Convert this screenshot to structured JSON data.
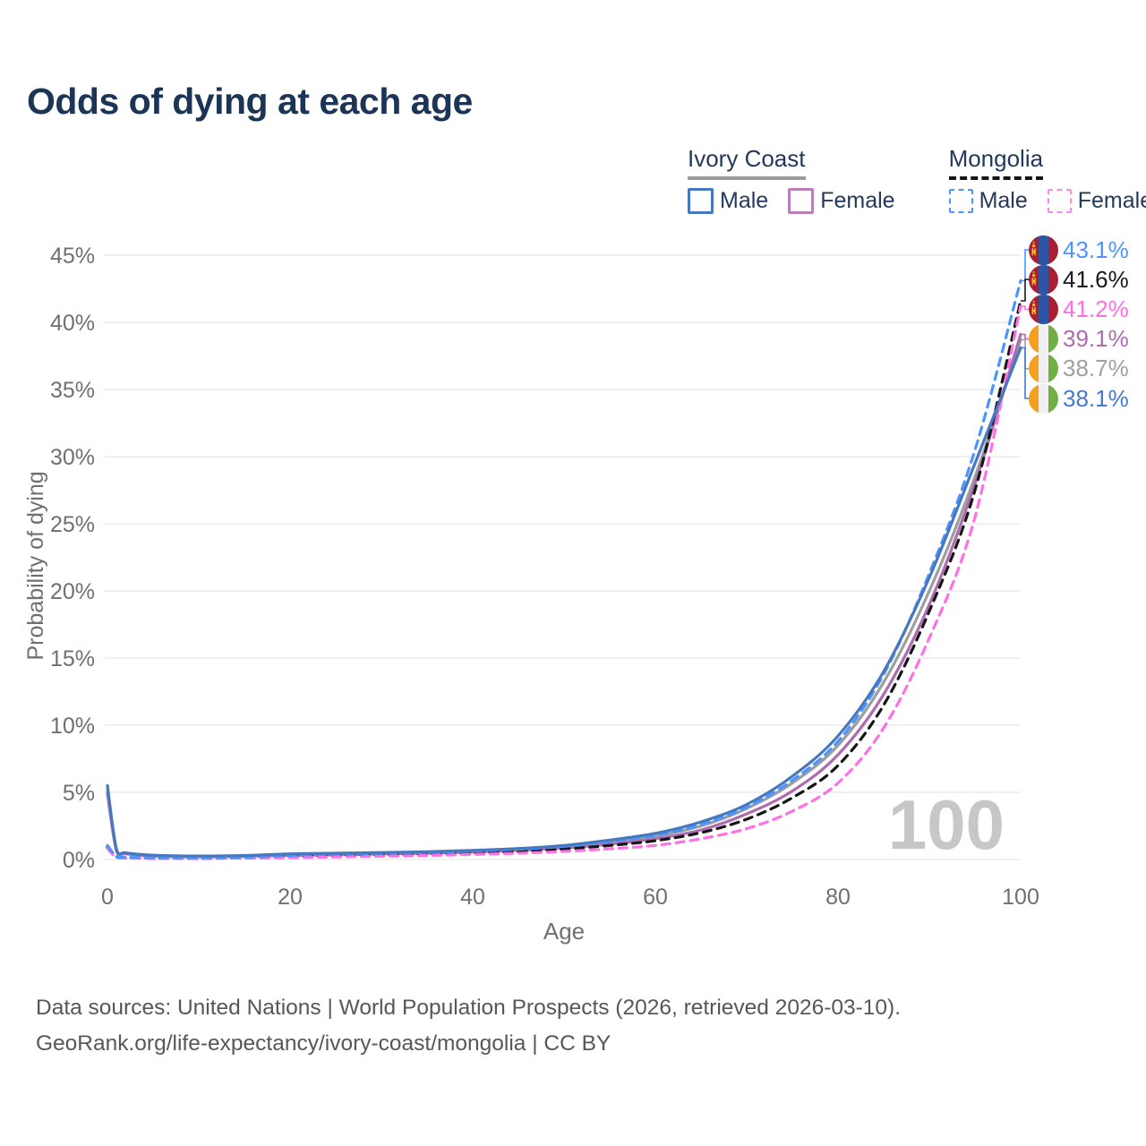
{
  "title": "Odds of dying at each age",
  "legend": {
    "groups": [
      {
        "title": "Ivory Coast",
        "line_style": "solid",
        "underline_color": "#9a9a9a",
        "items": [
          {
            "label": "Male",
            "color": "#4678c0"
          },
          {
            "label": "Female",
            "color": "#b87fb8"
          }
        ]
      },
      {
        "title": "Mongolia",
        "line_style": "dashed",
        "underline_color": "#141414",
        "items": [
          {
            "label": "Male",
            "color": "#4d94ff"
          },
          {
            "label": "Female",
            "color": "#ff85ea"
          }
        ]
      }
    ]
  },
  "watermark": "100",
  "footer": {
    "line1": "Data sources: United Nations | World Population Prospects (2026, retrieved 2026-03-10).",
    "line2": "GeoRank.org/life-expectancy/ivory-coast/mongolia | CC BY"
  },
  "chart_data": {
    "type": "line",
    "title": "Odds of dying at each age",
    "xlabel": "Age",
    "ylabel": "Probability of dying",
    "xlim": [
      0,
      100
    ],
    "ylim": [
      0,
      45
    ],
    "x_ticks": [
      0,
      20,
      40,
      60,
      80,
      100
    ],
    "y_ticks": [
      0,
      5,
      10,
      15,
      20,
      25,
      30,
      35,
      40,
      45
    ],
    "y_tick_suffix": "%",
    "grid": "horizontal",
    "legend_position": "top-right",
    "x": [
      0,
      1,
      2,
      5,
      10,
      15,
      20,
      25,
      30,
      35,
      40,
      45,
      50,
      55,
      60,
      65,
      70,
      75,
      80,
      85,
      90,
      95,
      100
    ],
    "series": [
      {
        "name": "Ivory Coast Male",
        "country": "Ivory Coast",
        "sex": "Male",
        "color": "#4678c0",
        "dash": false,
        "values": [
          5.5,
          0.75,
          0.5,
          0.32,
          0.26,
          0.3,
          0.42,
          0.47,
          0.52,
          0.58,
          0.68,
          0.82,
          1.05,
          1.45,
          1.95,
          2.8,
          4.1,
          6.2,
          9.2,
          14.0,
          21.0,
          29.5,
          38.1
        ]
      },
      {
        "name": "Ivory Coast Female",
        "country": "Ivory Coast",
        "sex": "Female",
        "color": "#ad6cad",
        "dash": false,
        "values": [
          4.9,
          0.62,
          0.42,
          0.27,
          0.21,
          0.24,
          0.3,
          0.35,
          0.41,
          0.47,
          0.55,
          0.68,
          0.87,
          1.15,
          1.55,
          2.2,
          3.4,
          5.1,
          7.8,
          12.3,
          19.0,
          28.0,
          39.1
        ]
      },
      {
        "name": "Ivory Coast All",
        "country": "Ivory Coast",
        "sex": "All",
        "color": "#9e9e9e",
        "dash": false,
        "values": [
          5.2,
          0.68,
          0.46,
          0.3,
          0.24,
          0.27,
          0.36,
          0.41,
          0.46,
          0.52,
          0.61,
          0.75,
          0.96,
          1.3,
          1.75,
          2.5,
          3.8,
          5.7,
          8.5,
          13.2,
          20.0,
          28.5,
          38.7
        ]
      },
      {
        "name": "Mongolia Male",
        "country": "Mongolia",
        "sex": "Male",
        "color": "#4d94ff",
        "dash": true,
        "values": [
          1.05,
          0.22,
          0.17,
          0.12,
          0.1,
          0.17,
          0.3,
          0.4,
          0.46,
          0.52,
          0.62,
          0.76,
          0.98,
          1.32,
          1.8,
          2.6,
          3.9,
          5.9,
          8.8,
          13.8,
          21.3,
          30.5,
          43.1
        ]
      },
      {
        "name": "Mongolia Female",
        "country": "Mongolia",
        "sex": "Female",
        "color": "#ff70e5",
        "dash": true,
        "values": [
          0.82,
          0.14,
          0.1,
          0.07,
          0.07,
          0.1,
          0.14,
          0.19,
          0.24,
          0.3,
          0.38,
          0.47,
          0.6,
          0.8,
          1.05,
          1.55,
          2.3,
          3.6,
          5.7,
          9.8,
          16.5,
          25.5,
          41.2
        ]
      },
      {
        "name": "Mongolia All",
        "country": "Mongolia",
        "sex": "All",
        "color": "#161616",
        "dash": true,
        "values": [
          0.92,
          0.18,
          0.13,
          0.09,
          0.08,
          0.13,
          0.22,
          0.3,
          0.36,
          0.42,
          0.5,
          0.6,
          0.78,
          1.05,
          1.4,
          2.0,
          3.0,
          4.6,
          7.0,
          11.5,
          18.5,
          27.5,
          41.6
        ]
      }
    ],
    "end_labels": [
      {
        "value": "43.1%",
        "series": "Mongolia Male",
        "flag": "mongolia",
        "color": "#4d94ff",
        "end_pct": 43.1
      },
      {
        "value": "41.6%",
        "series": "Mongolia All",
        "flag": "mongolia",
        "color": "#1a1a1a",
        "end_pct": 41.6
      },
      {
        "value": "41.2%",
        "series": "Mongolia Female",
        "flag": "mongolia",
        "color": "#ff6ee4",
        "end_pct": 41.2
      },
      {
        "value": "39.1%",
        "series": "Ivory Coast Female",
        "flag": "ivory-coast",
        "color": "#ad6cad",
        "end_pct": 39.1
      },
      {
        "value": "38.7%",
        "series": "Ivory Coast All",
        "flag": "ivory-coast",
        "color": "#a0a0a0",
        "end_pct": 38.7
      },
      {
        "value": "38.1%",
        "series": "Ivory Coast Male",
        "flag": "ivory-coast",
        "color": "#4678d0",
        "end_pct": 38.1
      }
    ]
  }
}
